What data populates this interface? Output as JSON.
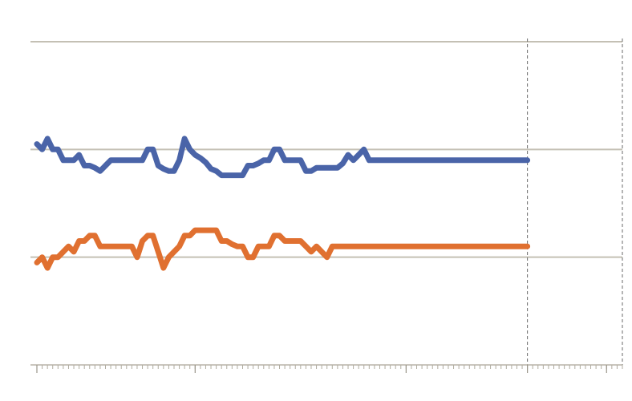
{
  "chart_data": {
    "type": "line",
    "title": "",
    "xlabel": "",
    "ylabel": "",
    "ylim": [
      0,
      3
    ],
    "xlim": [
      0,
      105
    ],
    "grid": "horizontal",
    "legend": "none",
    "y_gridlines": [
      1,
      2,
      3
    ],
    "x_reference_lines": [
      93,
      111
    ],
    "x_major_ticks": [
      0,
      30,
      70,
      93,
      108
    ],
    "x_minor_tick_count": 111,
    "series": [
      {
        "color": "#4a64a8",
        "x": [
          0,
          1,
          2,
          3,
          4,
          5,
          6,
          7,
          8,
          9,
          10,
          11,
          12,
          13,
          14,
          15,
          16,
          17,
          18,
          19,
          20,
          21,
          22,
          23,
          24,
          25,
          26,
          27,
          28,
          29,
          30,
          31,
          32,
          33,
          34,
          35,
          36,
          37,
          38,
          39,
          40,
          41,
          42,
          43,
          44,
          45,
          46,
          47,
          48,
          49,
          50,
          51,
          52,
          53,
          54,
          55,
          56,
          57,
          58,
          59,
          60,
          61,
          62,
          63,
          64,
          65,
          66,
          67,
          68,
          69,
          70,
          71,
          72,
          73,
          74,
          75,
          76,
          77,
          78,
          79,
          80,
          81,
          82,
          83,
          84,
          85,
          86,
          87,
          88,
          89,
          90,
          91,
          92,
          93
        ],
        "values": [
          2.05,
          2.0,
          2.1,
          2.0,
          2.0,
          1.9,
          1.9,
          1.9,
          1.95,
          1.85,
          1.85,
          1.83,
          1.8,
          1.85,
          1.9,
          1.9,
          1.9,
          1.9,
          1.9,
          1.9,
          1.9,
          2.0,
          2.0,
          1.85,
          1.82,
          1.8,
          1.8,
          1.9,
          2.1,
          2.0,
          1.95,
          1.92,
          1.88,
          1.82,
          1.8,
          1.76,
          1.76,
          1.76,
          1.76,
          1.76,
          1.85,
          1.85,
          1.87,
          1.9,
          1.9,
          2.0,
          2.0,
          1.9,
          1.9,
          1.9,
          1.9,
          1.8,
          1.8,
          1.83,
          1.83,
          1.83,
          1.83,
          1.83,
          1.87,
          1.95,
          1.9,
          1.95,
          2.0,
          1.9,
          1.9,
          1.9,
          1.9,
          1.9,
          1.9,
          1.9,
          1.9,
          1.9,
          1.9,
          1.9,
          1.9,
          1.9,
          1.9,
          1.9,
          1.9,
          1.9,
          1.9,
          1.9,
          1.9,
          1.9,
          1.9,
          1.9,
          1.9,
          1.9,
          1.9,
          1.9,
          1.9,
          1.9,
          1.9,
          1.9
        ]
      },
      {
        "color": "#e07030",
        "x": [
          0,
          1,
          2,
          3,
          4,
          5,
          6,
          7,
          8,
          9,
          10,
          11,
          12,
          13,
          14,
          15,
          16,
          17,
          18,
          19,
          20,
          21,
          22,
          23,
          24,
          25,
          26,
          27,
          28,
          29,
          30,
          31,
          32,
          33,
          34,
          35,
          36,
          37,
          38,
          39,
          40,
          41,
          42,
          43,
          44,
          45,
          46,
          47,
          48,
          49,
          50,
          51,
          52,
          53,
          54,
          55,
          56,
          57,
          58,
          59,
          60,
          61,
          62,
          63,
          64,
          65,
          66,
          67,
          68,
          69,
          70,
          71,
          72,
          73,
          74,
          75,
          76,
          77,
          78,
          79,
          80,
          81,
          82,
          83,
          84,
          85,
          86,
          87,
          88,
          89,
          90,
          91,
          92,
          93
        ],
        "values": [
          0.95,
          1.0,
          0.9,
          1.0,
          1.0,
          1.05,
          1.1,
          1.05,
          1.15,
          1.15,
          1.2,
          1.2,
          1.1,
          1.1,
          1.1,
          1.1,
          1.1,
          1.1,
          1.1,
          1.0,
          1.15,
          1.2,
          1.2,
          1.05,
          0.9,
          1.0,
          1.05,
          1.1,
          1.2,
          1.2,
          1.25,
          1.25,
          1.25,
          1.25,
          1.25,
          1.15,
          1.15,
          1.12,
          1.1,
          1.1,
          1.0,
          1.0,
          1.1,
          1.1,
          1.1,
          1.2,
          1.2,
          1.15,
          1.15,
          1.15,
          1.15,
          1.1,
          1.05,
          1.1,
          1.05,
          1.0,
          1.1,
          1.1,
          1.1,
          1.1,
          1.1,
          1.1,
          1.1,
          1.1,
          1.1,
          1.1,
          1.1,
          1.1,
          1.1,
          1.1,
          1.1,
          1.1,
          1.1,
          1.1,
          1.1,
          1.1,
          1.1,
          1.1,
          1.1,
          1.1,
          1.1,
          1.1,
          1.1,
          1.1,
          1.1,
          1.1,
          1.1,
          1.1,
          1.1,
          1.1,
          1.1,
          1.1,
          1.1,
          1.1
        ]
      }
    ]
  }
}
